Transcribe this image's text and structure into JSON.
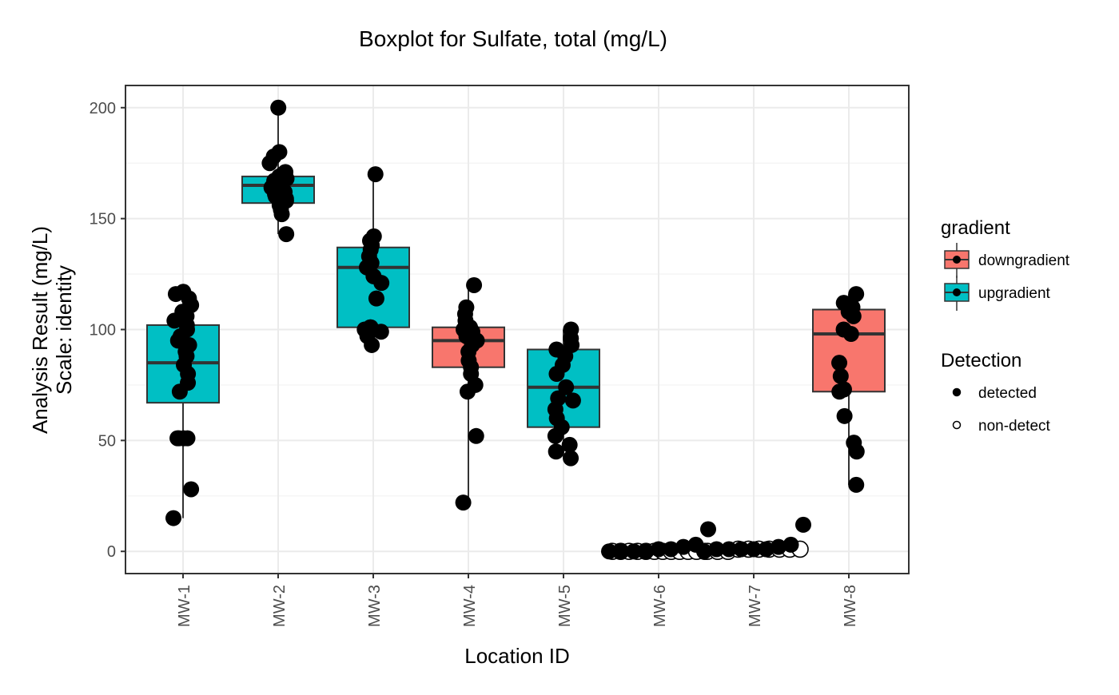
{
  "chart_data": {
    "type": "boxplot",
    "title": "Boxplot for Sulfate, total (mg/L)",
    "xlabel": "Location ID",
    "ylabel": [
      "Analysis Result (mg/L)",
      "Scale: identity"
    ],
    "ylim": [
      -10,
      210
    ],
    "yticks": [
      0,
      50,
      100,
      150,
      200
    ],
    "categories": [
      "MW-1",
      "MW-2",
      "MW-3",
      "MW-4",
      "MW-5",
      "MW-6",
      "MW-7",
      "MW-8"
    ],
    "grid": true,
    "legend_position": "right",
    "legends": {
      "gradient": {
        "title": "gradient",
        "entries": [
          {
            "label": "downgradient",
            "color": "#F8766D"
          },
          {
            "label": "upgradient",
            "color": "#00BFC4"
          }
        ]
      },
      "detection": {
        "title": "Detection",
        "entries": [
          {
            "label": "detected",
            "fill": true
          },
          {
            "label": "non-detect",
            "fill": false
          }
        ]
      }
    },
    "boxes": [
      {
        "category": "MW-1",
        "gradient": "upgradient",
        "min": 15,
        "q1": 67,
        "median": 85,
        "q3": 102,
        "max": 117,
        "points": [
          15,
          28,
          51,
          51,
          51,
          51,
          72,
          76,
          80,
          84,
          88,
          90,
          93,
          95,
          97,
          100,
          102,
          104,
          106,
          108,
          111,
          114,
          116,
          117
        ]
      },
      {
        "category": "MW-2",
        "gradient": "upgradient",
        "min": 143,
        "q1": 157,
        "median": 165,
        "q3": 169,
        "max": 200,
        "points": [
          143,
          152,
          154,
          156,
          158,
          159,
          160,
          161,
          162,
          163,
          164,
          165,
          166,
          167,
          168,
          169,
          170,
          171,
          175,
          178,
          180,
          200
        ]
      },
      {
        "category": "MW-3",
        "gradient": "upgradient",
        "min": 93,
        "q1": 101,
        "median": 128,
        "q3": 137,
        "max": 170,
        "points": [
          93,
          97,
          99,
          100,
          101,
          101,
          114,
          121,
          124,
          128,
          130,
          133,
          136,
          138,
          140,
          142,
          170
        ]
      },
      {
        "category": "MW-4",
        "gradient": "downgradient",
        "min": 22,
        "q1": 83,
        "median": 95,
        "q3": 101,
        "max": 120,
        "points": [
          22,
          52,
          72,
          75,
          80,
          83,
          86,
          90,
          93,
          95,
          97,
          99,
          100,
          101,
          104,
          107,
          110,
          120
        ]
      },
      {
        "category": "MW-5",
        "gradient": "upgradient",
        "min": 42,
        "q1": 56,
        "median": 74,
        "q3": 91,
        "max": 100,
        "points": [
          42,
          45,
          48,
          52,
          56,
          60,
          64,
          68,
          69,
          74,
          80,
          84,
          88,
          91,
          93,
          96,
          100
        ]
      },
      {
        "category": "MW-6",
        "gradient": "downgradient",
        "min": 0,
        "q1": 0,
        "median": 0,
        "q3": 0,
        "max": 0,
        "points": [
          0,
          0,
          0,
          0,
          1,
          1,
          2,
          3,
          10
        ],
        "nondetects": [
          0,
          0,
          0,
          0,
          0,
          0,
          0,
          0,
          0,
          0,
          0,
          0
        ]
      },
      {
        "category": "MW-7",
        "gradient": "downgradient",
        "min": 0,
        "q1": 0,
        "median": 0,
        "q3": 1,
        "max": 1,
        "points": [
          0,
          1,
          1,
          1,
          1,
          1,
          2,
          3,
          12
        ],
        "nondetects": [
          0,
          0,
          0,
          1,
          1,
          1,
          1,
          1,
          1,
          1
        ]
      },
      {
        "category": "MW-8",
        "gradient": "downgradient",
        "min": 30,
        "q1": 72,
        "median": 98,
        "q3": 109,
        "max": 116,
        "points": [
          30,
          45,
          49,
          61,
          72,
          73,
          79,
          85,
          98,
          100,
          106,
          108,
          110,
          112,
          116
        ]
      }
    ]
  }
}
